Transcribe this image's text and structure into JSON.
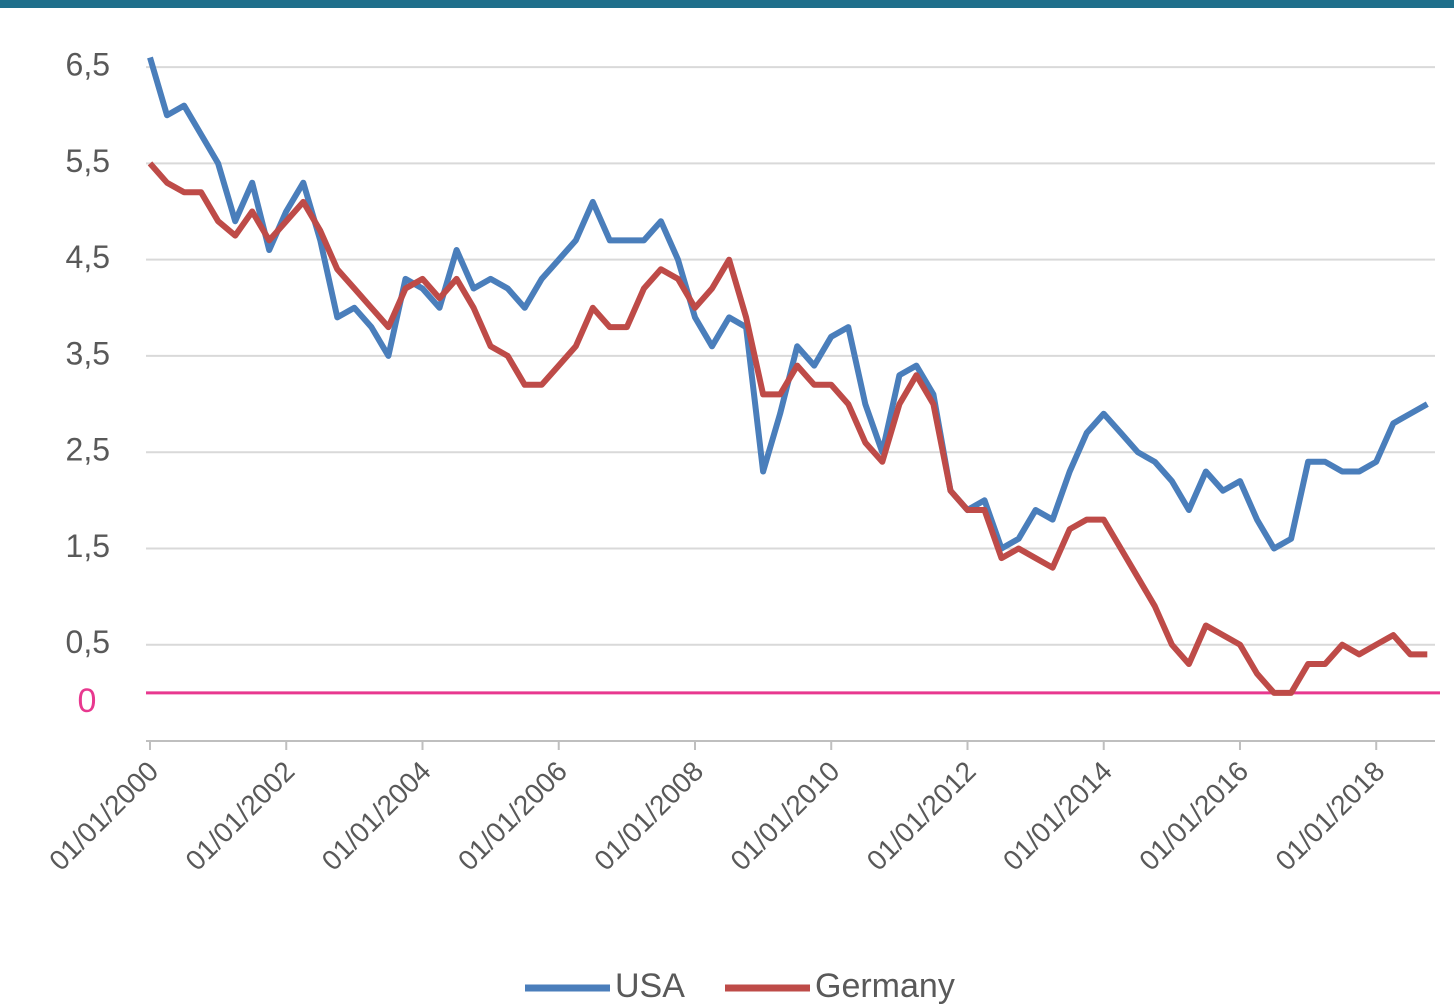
{
  "chart_data": {
    "type": "line",
    "x": [
      "01/01/2000",
      "01/04/2000",
      "01/07/2000",
      "01/10/2000",
      "01/01/2001",
      "01/04/2001",
      "01/07/2001",
      "01/10/2001",
      "01/01/2002",
      "01/04/2002",
      "01/07/2002",
      "01/10/2002",
      "01/01/2003",
      "01/04/2003",
      "01/07/2003",
      "01/10/2003",
      "01/01/2004",
      "01/04/2004",
      "01/07/2004",
      "01/10/2004",
      "01/01/2005",
      "01/04/2005",
      "01/07/2005",
      "01/10/2005",
      "01/01/2006",
      "01/04/2006",
      "01/07/2006",
      "01/10/2006",
      "01/01/2007",
      "01/04/2007",
      "01/07/2007",
      "01/10/2007",
      "01/01/2008",
      "01/04/2008",
      "01/07/2008",
      "01/10/2008",
      "01/01/2009",
      "01/04/2009",
      "01/07/2009",
      "01/10/2009",
      "01/01/2010",
      "01/04/2010",
      "01/07/2010",
      "01/10/2010",
      "01/01/2011",
      "01/04/2011",
      "01/07/2011",
      "01/10/2011",
      "01/01/2012",
      "01/04/2012",
      "01/07/2012",
      "01/10/2012",
      "01/01/2013",
      "01/04/2013",
      "01/07/2013",
      "01/10/2013",
      "01/01/2014",
      "01/04/2014",
      "01/07/2014",
      "01/10/2014",
      "01/01/2015",
      "01/04/2015",
      "01/07/2015",
      "01/10/2015",
      "01/01/2016",
      "01/04/2016",
      "01/07/2016",
      "01/10/2016",
      "01/01/2017",
      "01/04/2017",
      "01/07/2017",
      "01/10/2017",
      "01/01/2018",
      "01/04/2018",
      "01/07/2018",
      "01/10/2018"
    ],
    "series": [
      {
        "name": "USA",
        "color": "#4a7ebb",
        "values": [
          6.6,
          6.0,
          6.1,
          5.8,
          5.5,
          4.9,
          5.3,
          4.6,
          5.0,
          5.3,
          4.7,
          3.9,
          4.0,
          3.8,
          3.5,
          4.3,
          4.2,
          4.0,
          4.6,
          4.2,
          4.3,
          4.2,
          4.0,
          4.3,
          4.5,
          4.7,
          5.1,
          4.7,
          4.7,
          4.7,
          4.9,
          4.5,
          3.9,
          3.6,
          3.9,
          3.8,
          2.3,
          2.9,
          3.6,
          3.4,
          3.7,
          3.8,
          3.0,
          2.5,
          3.3,
          3.4,
          3.1,
          2.1,
          1.9,
          2.0,
          1.5,
          1.6,
          1.9,
          1.8,
          2.3,
          2.7,
          2.9,
          2.7,
          2.5,
          2.4,
          2.2,
          1.9,
          2.3,
          2.1,
          2.2,
          1.8,
          1.5,
          1.6,
          2.4,
          2.4,
          2.3,
          2.3,
          2.4,
          2.8,
          2.9,
          3.0
        ]
      },
      {
        "name": "Germany",
        "color": "#be4b48",
        "values": [
          5.5,
          5.3,
          5.2,
          5.2,
          4.9,
          4.75,
          5.0,
          4.7,
          4.9,
          5.1,
          4.8,
          4.4,
          4.2,
          4.0,
          3.8,
          4.2,
          4.3,
          4.1,
          4.3,
          4.0,
          3.6,
          3.5,
          3.2,
          3.2,
          3.4,
          3.6,
          4.0,
          3.8,
          3.8,
          4.2,
          4.4,
          4.3,
          4.0,
          4.2,
          4.5,
          3.9,
          3.1,
          3.1,
          3.4,
          3.2,
          3.2,
          3.0,
          2.6,
          2.4,
          3.0,
          3.3,
          3.0,
          2.1,
          1.9,
          1.9,
          1.4,
          1.5,
          1.4,
          1.3,
          1.7,
          1.8,
          1.8,
          1.5,
          1.2,
          0.9,
          0.5,
          0.3,
          0.7,
          0.6,
          0.5,
          0.2,
          0.0,
          0.0,
          0.3,
          0.3,
          0.5,
          0.4,
          0.5,
          0.6,
          0.4,
          0.4
        ]
      }
    ],
    "xlim": [
      "01/01/2000",
      "01/11/2018"
    ],
    "xticks": [
      "01/01/2000",
      "01/01/2002",
      "01/01/2004",
      "01/01/2006",
      "01/01/2008",
      "01/01/2010",
      "01/01/2012",
      "01/01/2014",
      "01/01/2016",
      "01/01/2018"
    ],
    "ylim": [
      -0.5,
      7
    ],
    "yticks": [
      {
        "value": 0.5,
        "label": "0,5"
      },
      {
        "value": 1.5,
        "label": "1,5"
      },
      {
        "value": 2.5,
        "label": "2,5"
      },
      {
        "value": 3.5,
        "label": "3,5"
      },
      {
        "value": 4.5,
        "label": "4,5"
      },
      {
        "value": 5.5,
        "label": "5,5"
      },
      {
        "value": 6.5,
        "label": "6,5"
      }
    ],
    "grid": true,
    "reference_line": {
      "value": 0,
      "color": "#e8388f"
    },
    "legend": "bottom"
  }
}
